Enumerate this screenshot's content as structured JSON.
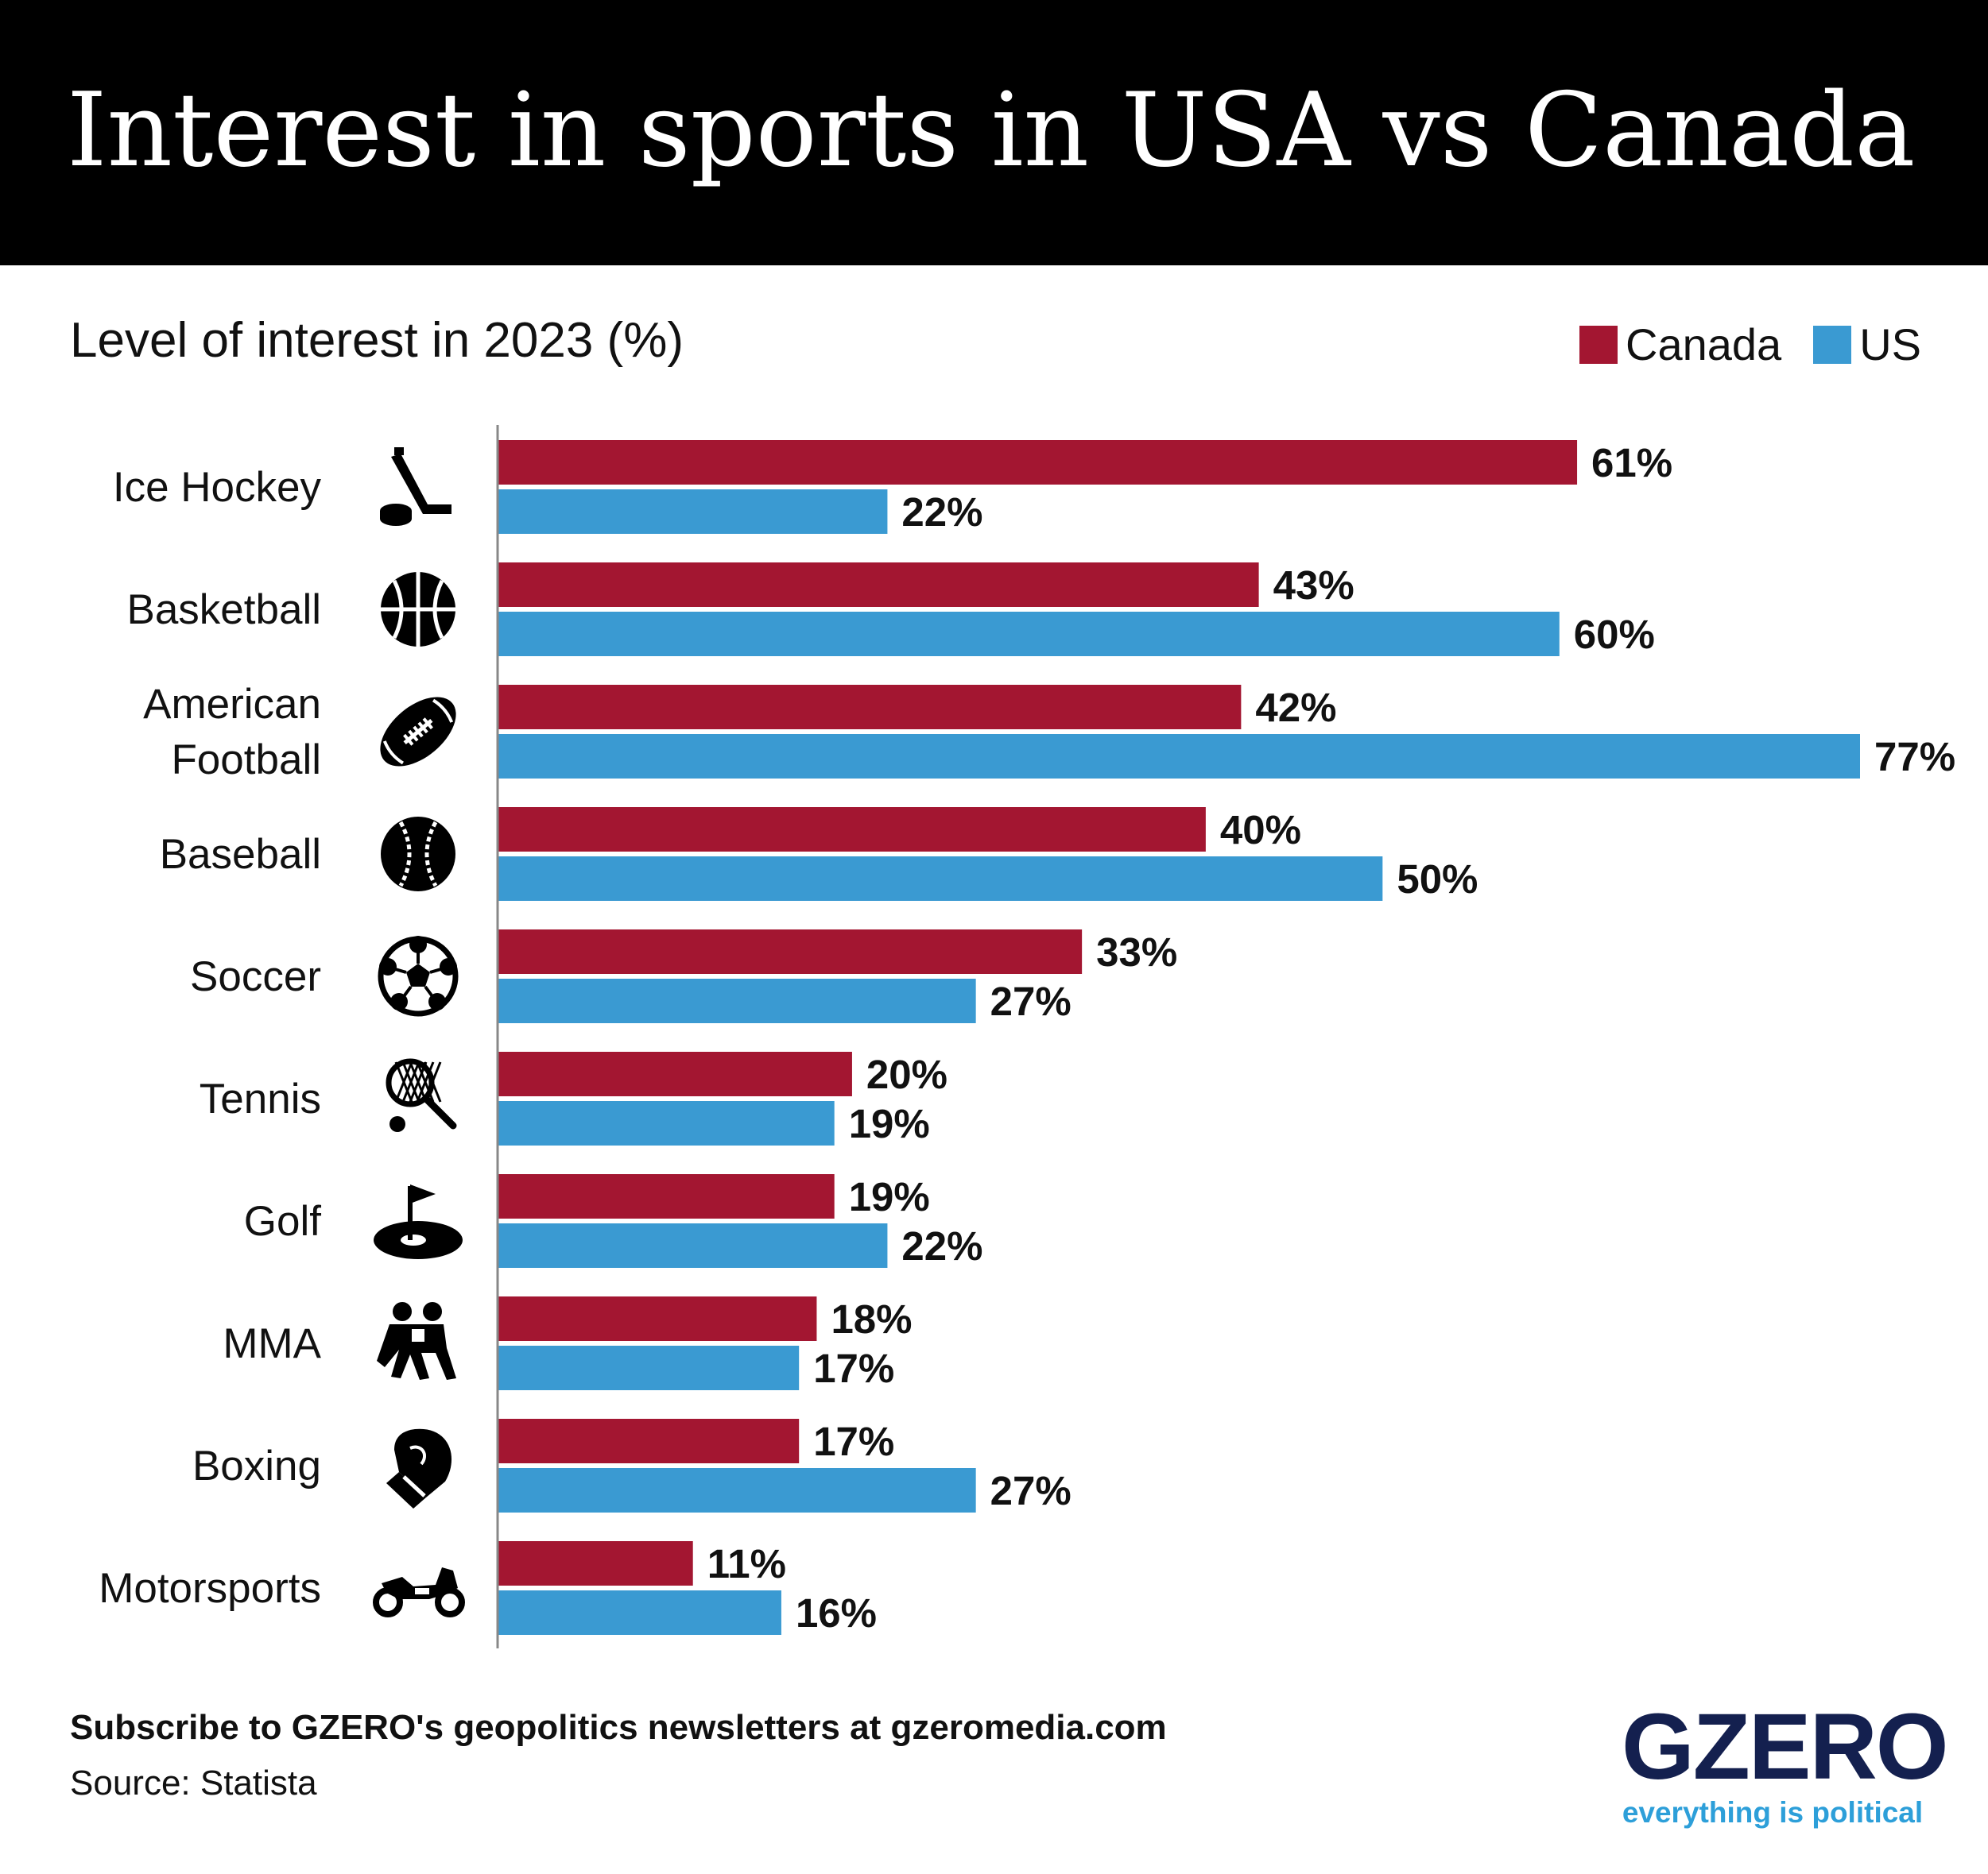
{
  "header": {
    "title": "Interest in sports in USA vs Canada",
    "subtitle": "Level of interest in 2023 (%)"
  },
  "legend": [
    {
      "label": "Canada",
      "color": "#a31631"
    },
    {
      "label": "US",
      "color": "#3a9ad2"
    }
  ],
  "chart_data": {
    "type": "bar",
    "orientation": "horizontal",
    "title": "Interest in sports in USA vs Canada",
    "subtitle": "Level of interest in 2023 (%)",
    "xlim": [
      0,
      77
    ],
    "grid": false,
    "legend_position": "top-right",
    "categories": [
      {
        "label": [
          "Ice Hockey"
        ],
        "icon": "hockey-stick-icon"
      },
      {
        "label": [
          "Basketball"
        ],
        "icon": "basketball-icon"
      },
      {
        "label": [
          "American",
          "Football"
        ],
        "icon": "football-icon"
      },
      {
        "label": [
          "Baseball"
        ],
        "icon": "baseball-icon"
      },
      {
        "label": [
          "Soccer"
        ],
        "icon": "soccer-ball-icon"
      },
      {
        "label": [
          "Tennis"
        ],
        "icon": "tennis-racket-icon"
      },
      {
        "label": [
          "Golf"
        ],
        "icon": "golf-flag-icon"
      },
      {
        "label": [
          "MMA"
        ],
        "icon": "wrestlers-icon"
      },
      {
        "label": [
          "Boxing"
        ],
        "icon": "boxing-glove-icon"
      },
      {
        "label": [
          "Motorsports"
        ],
        "icon": "motorcycle-icon"
      }
    ],
    "series": [
      {
        "name": "Canada",
        "color": "#a31631",
        "values": [
          61,
          43,
          42,
          40,
          33,
          20,
          19,
          18,
          17,
          11
        ]
      },
      {
        "name": "US",
        "color": "#3a9ad2",
        "values": [
          22,
          60,
          77,
          50,
          27,
          19,
          22,
          17,
          27,
          16
        ]
      }
    ],
    "value_suffix": "%"
  },
  "footer": {
    "subscribe": "Subscribe to GZERO's geopolitics newsletters at gzeromedia.com",
    "source": "Source: Statista"
  },
  "logo": {
    "word": "GZERO",
    "tagline": "everything is political"
  }
}
